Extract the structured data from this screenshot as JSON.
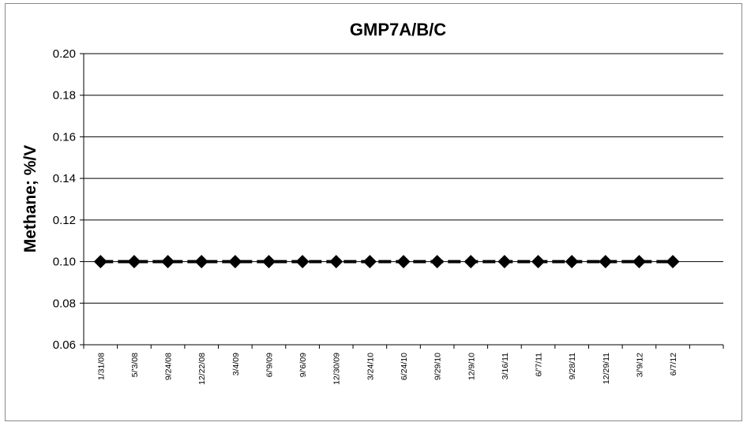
{
  "chart_data": {
    "type": "line",
    "title": "GMP7A/B/C",
    "xlabel": "",
    "ylabel": "Methane; %/V",
    "ylim": [
      0.06,
      0.2
    ],
    "yticks": [
      "0.20",
      "0.18",
      "0.16",
      "0.14",
      "0.12",
      "0.10",
      "0.08",
      "0.06"
    ],
    "ytick_values": [
      0.2,
      0.18,
      0.16,
      0.14,
      0.12,
      0.1,
      0.08,
      0.06
    ],
    "grid": true,
    "legend": "none",
    "categories": [
      "1/31/08",
      "5/'3/08",
      "9/24/08",
      "12/22/08",
      "3/4/09",
      "6/'9/09",
      "9/'6/09",
      "12/30/09",
      "3/24/10",
      "6/24/10",
      "9/29/10",
      "12/9/10",
      "3/16/11",
      "6/'7/11",
      "9/28/11",
      "12/29/11",
      "3/'9/12",
      "6/7/12"
    ],
    "series": [
      {
        "name": "",
        "color": "#000000",
        "marker": "diamond",
        "values": [
          0.1,
          0.1,
          0.1,
          0.1,
          0.1,
          0.1,
          0.1,
          0.1,
          0.1,
          0.1,
          0.1,
          0.1,
          0.1,
          0.1,
          0.1,
          0.1,
          0.1,
          0.1
        ]
      }
    ]
  }
}
